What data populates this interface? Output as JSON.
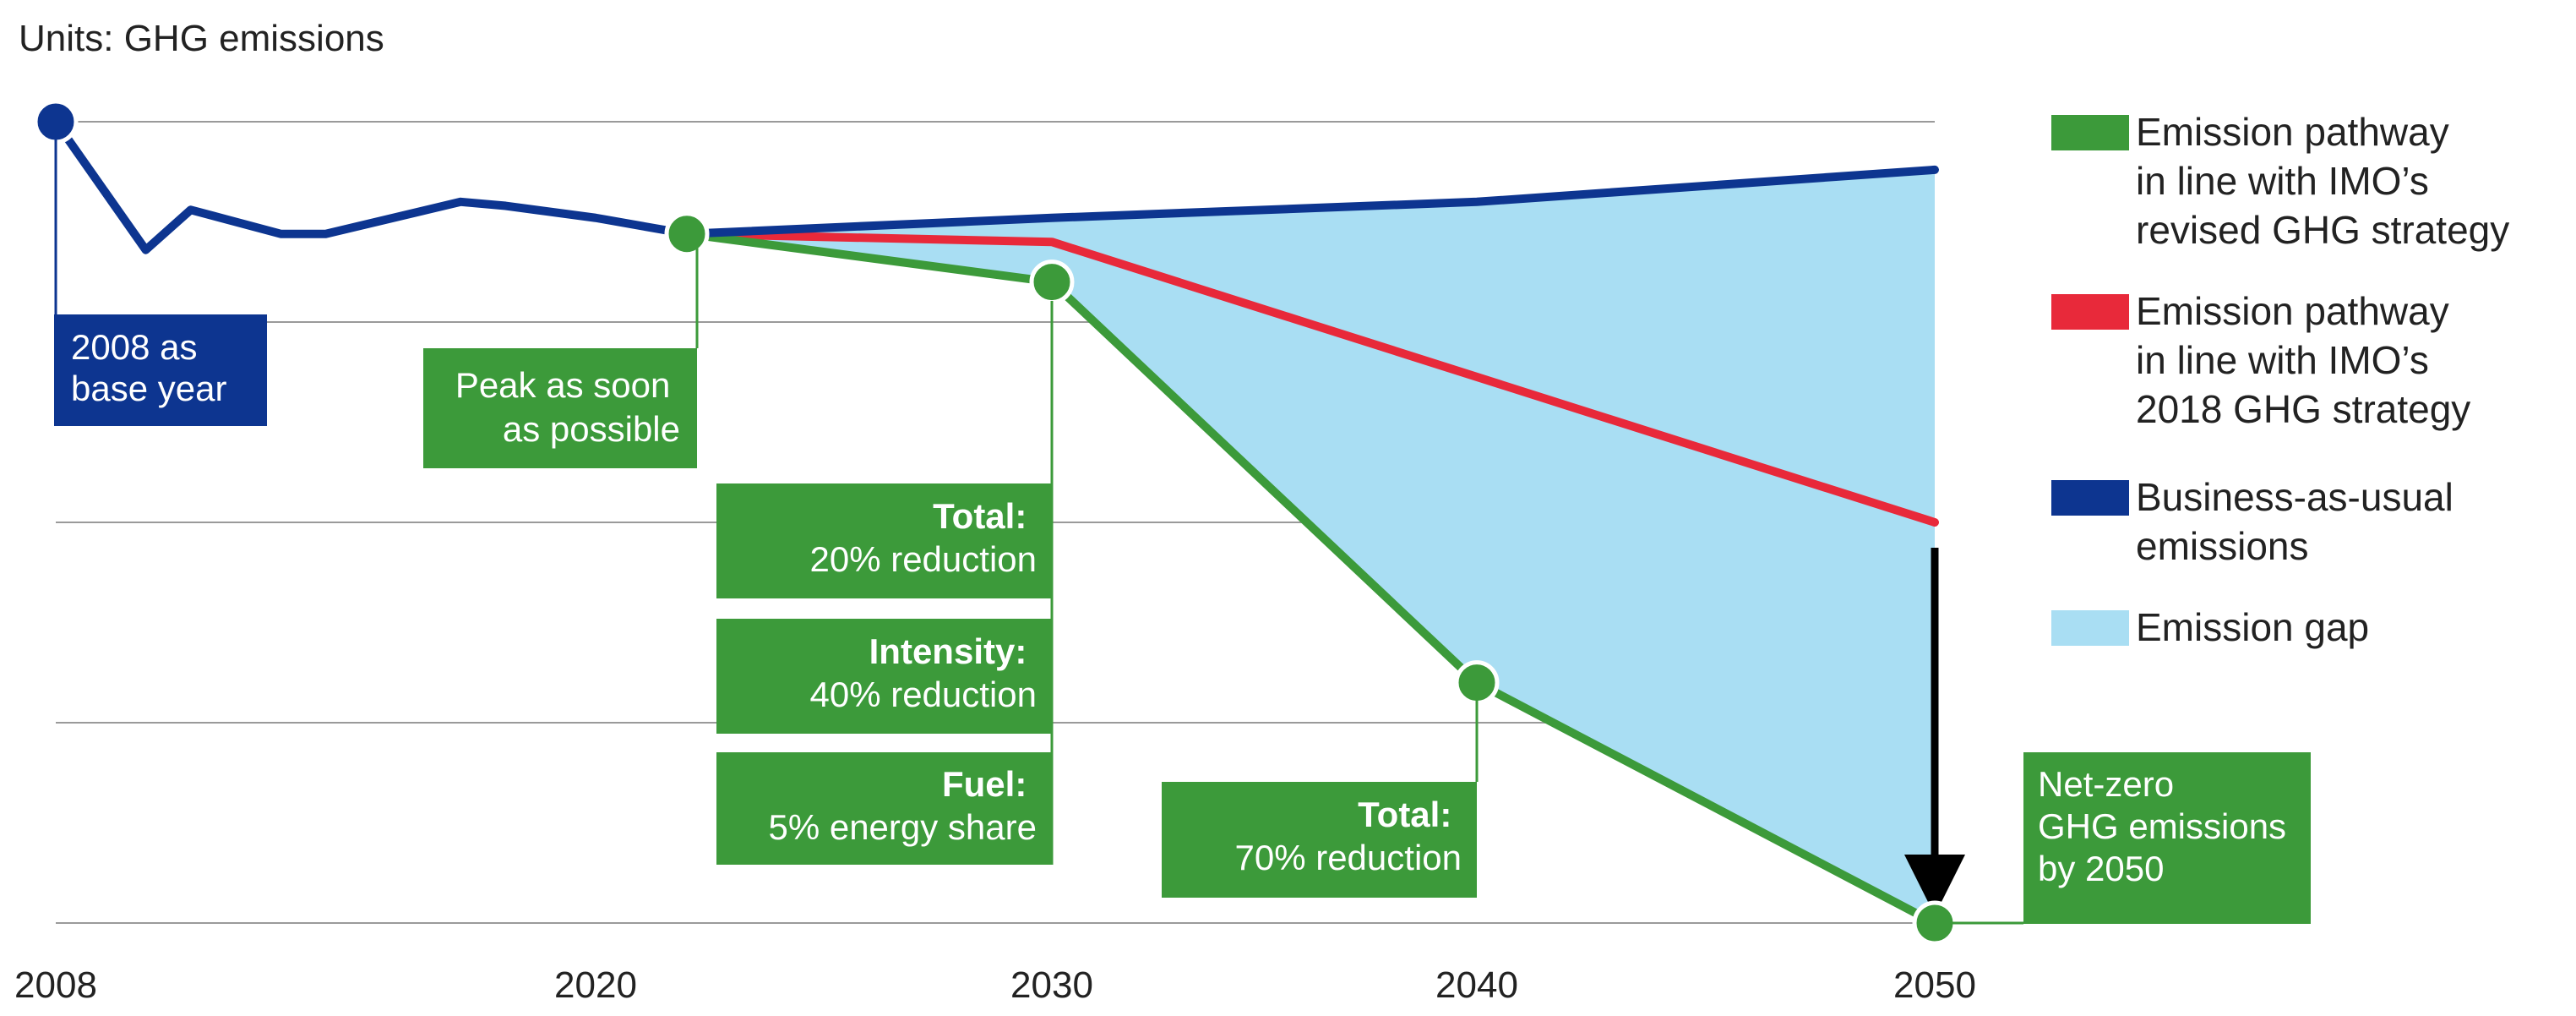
{
  "chart_data": {
    "type": "line",
    "title": "Units: GHG emissions",
    "xlabel": "",
    "ylabel": "",
    "xlim": [
      2008,
      2050
    ],
    "ylim": [
      0,
      100
    ],
    "x_ticks": [
      "2008",
      "2020",
      "2030",
      "2040",
      "2050"
    ],
    "grid": true,
    "legend_position": "right",
    "series": [
      {
        "name": "Emission pathway in line with IMO’s revised GHG strategy",
        "legend_lines": [
          "Emission pathway",
          "in line with IMO’s",
          "revised GHG strategy"
        ],
        "color": "#3c9a3a",
        "x": [
          2022,
          2030,
          2040,
          2050
        ],
        "y": [
          86,
          80,
          30,
          0
        ]
      },
      {
        "name": "Emission pathway in line with IMO’s 2018 GHG strategy",
        "legend_lines": [
          "Emission pathway",
          "in line with IMO’s",
          "2018 GHG strategy"
        ],
        "color": "#e8293a",
        "x": [
          2022,
          2030,
          2050
        ],
        "y": [
          86,
          85,
          50
        ]
      },
      {
        "name": "Business-as-usual emissions",
        "legend_lines": [
          "Business-as-usual",
          "emissions"
        ],
        "color": "#0d3590",
        "x": [
          2008,
          2010,
          2011,
          2013,
          2014,
          2017,
          2018,
          2020,
          2022,
          2030,
          2040,
          2050
        ],
        "y": [
          100,
          84,
          89,
          86,
          86,
          90,
          89.5,
          88,
          86,
          88,
          90,
          94
        ]
      }
    ],
    "area": {
      "name": "Emission gap",
      "legend_lines": [
        "Emission gap"
      ],
      "color": "#a9def3",
      "between": [
        "Business-as-usual emissions",
        "Emission pathway in line with IMO’s revised GHG strategy"
      ]
    },
    "markers": [
      {
        "series": "bau",
        "x": 2008,
        "y": 100
      },
      {
        "series": "green",
        "x": 2022,
        "y": 86
      },
      {
        "series": "green",
        "x": 2030,
        "y": 80
      },
      {
        "series": "green",
        "x": 2040,
        "y": 30
      },
      {
        "series": "green",
        "x": 2050,
        "y": 0
      }
    ],
    "annotations": [
      {
        "lines": [
          "2008 as",
          "base year"
        ],
        "color": "#0d3590"
      },
      {
        "lines": [
          "Peak as soon",
          "as possible"
        ],
        "color": "#3c9a3a"
      },
      {
        "head": "Total:",
        "body": "20% reduction",
        "color": "#3c9a3a"
      },
      {
        "head": "Intensity:",
        "body": "40% reduction",
        "color": "#3c9a3a"
      },
      {
        "head": "Fuel:",
        "body": "5% energy share",
        "color": "#3c9a3a"
      },
      {
        "head": "Total:",
        "body": "70% reduction",
        "color": "#3c9a3a"
      },
      {
        "lines": [
          "Net-zero",
          "GHG emissions",
          "by 2050"
        ],
        "color": "#3c9a3a"
      }
    ]
  }
}
